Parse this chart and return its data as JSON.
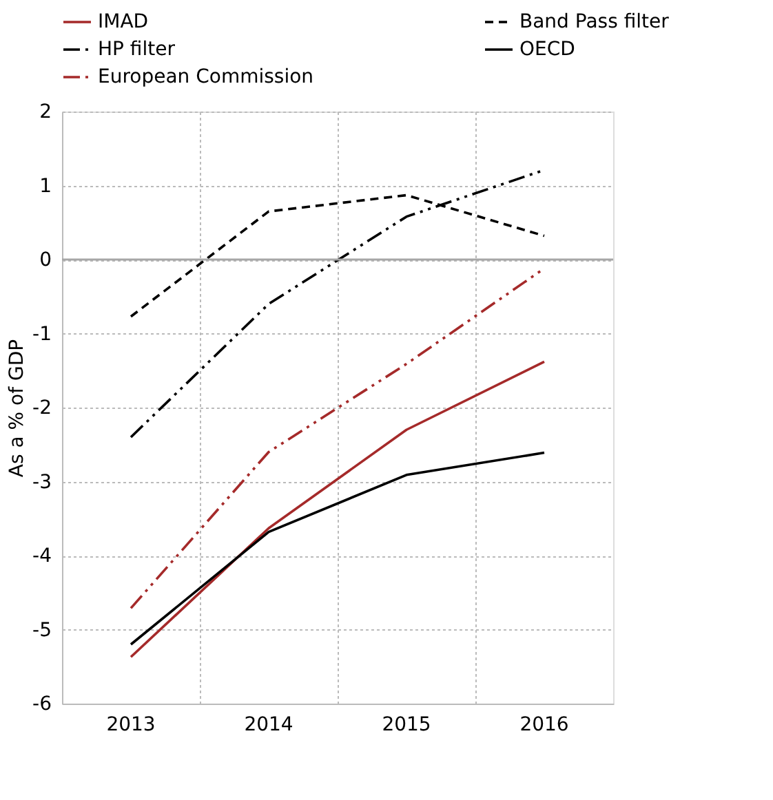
{
  "chart_data": {
    "type": "line",
    "ylabel": "As a % of GDP",
    "categories": [
      "2013",
      "2014",
      "2015",
      "2016"
    ],
    "series": [
      {
        "name": "IMAD",
        "color": "#a52a2a",
        "line_style": "solid",
        "values": [
          -5.37,
          -3.63,
          -2.3,
          -1.38
        ]
      },
      {
        "name": "Band Pass filter",
        "color": "#000000",
        "line_style": "dashed",
        "values": [
          -0.77,
          0.65,
          0.87,
          0.32
        ]
      },
      {
        "name": "HP filter",
        "color": "#000000",
        "line_style": "dashdot",
        "values": [
          -2.4,
          -0.6,
          0.58,
          1.21
        ]
      },
      {
        "name": "OECD",
        "color": "#000000",
        "line_style": "solid",
        "values": [
          -5.2,
          -3.68,
          -2.91,
          -2.61
        ]
      },
      {
        "name": "European Commission",
        "color": "#a52a2a",
        "line_style": "dashdot",
        "values": [
          -4.71,
          -2.6,
          -1.41,
          -0.12
        ]
      }
    ],
    "ylim": [
      -6,
      2
    ],
    "yticks": [
      -6,
      -5,
      -4,
      -3,
      -2,
      -1,
      0,
      1,
      2
    ],
    "ref_lines": [
      {
        "axis": "y",
        "value": 0,
        "color": "#a6a6a6",
        "line_style": "solid"
      }
    ],
    "grid": true,
    "legend": "top",
    "marker": "none"
  }
}
